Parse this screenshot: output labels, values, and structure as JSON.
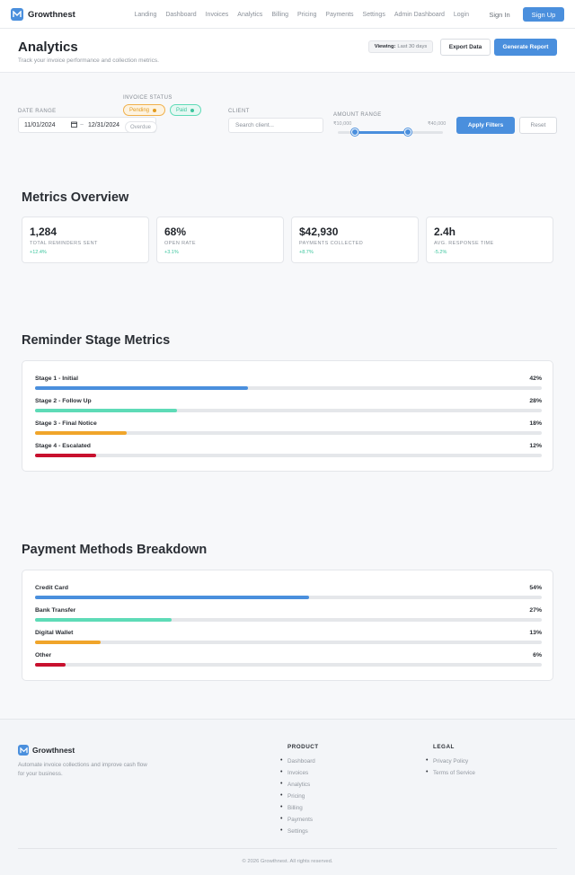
{
  "brand": {
    "name": "Growthnest"
  },
  "nav": {
    "links": [
      "Landing",
      "Dashboard",
      "Invoices",
      "Analytics",
      "Billing",
      "Pricing",
      "Payments",
      "Settings",
      "Admin Dashboard",
      "Login"
    ],
    "signin": "Sign In",
    "signup": "Sign Up"
  },
  "header": {
    "title": "Analytics",
    "subtitle": "Track your invoice performance and collection metrics.",
    "viewing_label": "Viewing:",
    "viewing_value": "Last 30 days",
    "export": "Export Data",
    "generate": "Generate Report"
  },
  "filters": {
    "date_label": "DATE RANGE",
    "date_start": "11/01/2024",
    "date_sep": "~",
    "date_end": "12/31/2024",
    "status_label": "INVOICE STATUS",
    "statuses": [
      "Pending",
      "Paid",
      "Overdue"
    ],
    "client_label": "CLIENT",
    "client_placeholder": "Search client...",
    "amount_label": "AMOUNT RANGE",
    "amount_min": "₹10,000",
    "amount_max": "₹40,000",
    "apply": "Apply Filters",
    "reset": "Reset"
  },
  "metrics": {
    "title": "Metrics Overview",
    "cards": [
      {
        "value": "1,284",
        "label": "TOTAL REMINDERS SENT",
        "trend": "+12.4%",
        "trend_color": "#3cc59e"
      },
      {
        "value": "68%",
        "label": "OPEN RATE",
        "trend": "+3.1%",
        "trend_color": "#3cc59e"
      },
      {
        "value": "$42,930",
        "label": "PAYMENTS COLLECTED",
        "trend": "+8.7%",
        "trend_color": "#3cc59e"
      },
      {
        "value": "2.4h",
        "label": "AVG. RESPONSE TIME",
        "trend": "-5.2%",
        "trend_color": "#3cc59e"
      }
    ]
  },
  "stages": {
    "title": "Reminder Stage Metrics",
    "items": [
      {
        "name": "Stage 1 - Initial",
        "pct": "42%",
        "value": 42,
        "color": "#4a8fdd"
      },
      {
        "name": "Stage 2 - Follow Up",
        "pct": "28%",
        "value": 28,
        "color": "#5edbb7"
      },
      {
        "name": "Stage 3 - Final Notice",
        "pct": "18%",
        "value": 18,
        "color": "#f0a52a"
      },
      {
        "name": "Stage 4 - Escalated",
        "pct": "12%",
        "value": 12,
        "color": "#c8102e"
      }
    ]
  },
  "payments": {
    "title": "Payment Methods Breakdown",
    "items": [
      {
        "name": "Credit Card",
        "pct": "54%",
        "value": 54,
        "color": "#4a8fdd"
      },
      {
        "name": "Bank Transfer",
        "pct": "27%",
        "value": 27,
        "color": "#5edbb7"
      },
      {
        "name": "Digital Wallet",
        "pct": "13%",
        "value": 13,
        "color": "#f0a52a"
      },
      {
        "name": "Other",
        "pct": "6%",
        "value": 6,
        "color": "#c8102e"
      }
    ]
  },
  "footer": {
    "brand": "Growthnest",
    "tagline": "Automate invoice collections and improve cash flow for your business.",
    "product_title": "PRODUCT",
    "product_links": [
      "Dashboard",
      "Invoices",
      "Analytics",
      "Pricing",
      "Billing",
      "Payments",
      "Settings"
    ],
    "legal_title": "LEGAL",
    "legal_links": [
      "Privacy Policy",
      "Terms of Service"
    ],
    "copyright": "© 2026 Growthnest. All rights reserved."
  }
}
